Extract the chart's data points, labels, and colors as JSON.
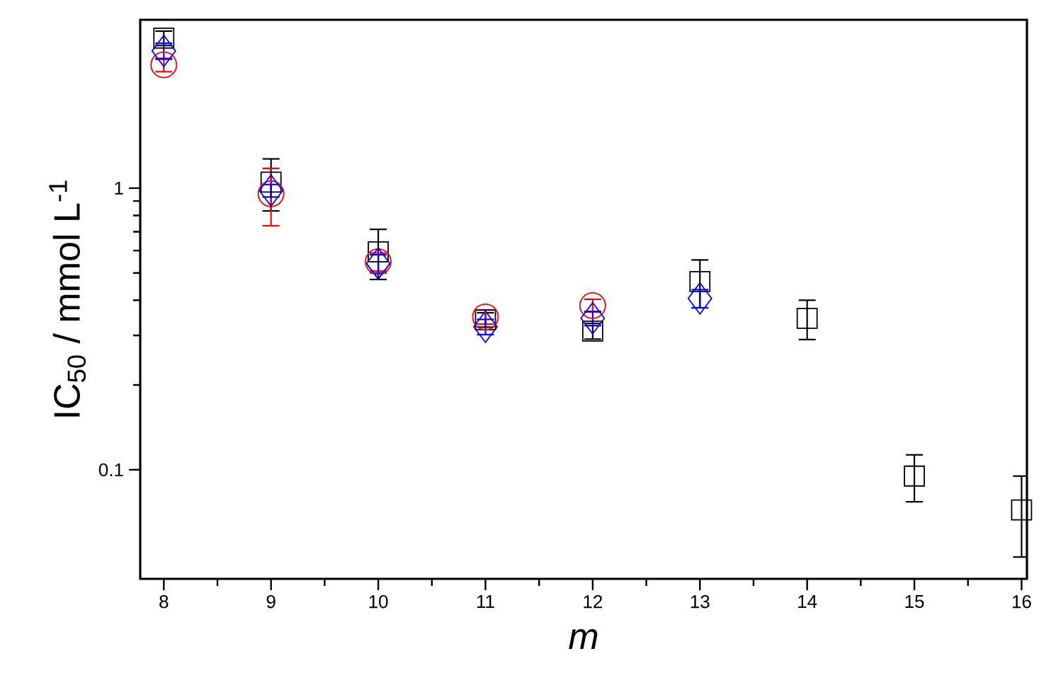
{
  "chart_data": {
    "type": "scatter",
    "xlabel": "m",
    "ylabel": "IC$_{50}$ / mmol L$^{-1}$",
    "log": "y",
    "xlim": [
      7.78,
      16.05
    ],
    "ylim": [
      0.041,
      3.96
    ],
    "xticks": [
      8,
      9,
      10,
      11,
      12,
      13,
      14,
      15,
      16
    ],
    "yticks": [
      0.1,
      1
    ],
    "grid": false,
    "series": [
      {
        "color": "#000000",
        "marker": "square",
        "x": [
          8,
          9,
          10,
          11,
          12,
          13,
          14,
          15,
          16
        ],
        "values": [
          3.41,
          1.05,
          0.594,
          0.341,
          0.311,
          0.466,
          0.345,
          0.095,
          0.072
        ],
        "errors": [
          0.2,
          0.22,
          0.12,
          0.02,
          0.02,
          0.09,
          0.055,
          0.018,
          0.023
        ]
      },
      {
        "color": "#ff0000",
        "marker": "circle",
        "x": [
          8,
          9,
          10,
          11,
          12
        ],
        "values": [
          2.74,
          0.955,
          0.548,
          0.349,
          0.383
        ],
        "errors": [
          0.15,
          0.22,
          0.04,
          0.02,
          0.02
        ]
      },
      {
        "color": "#0000ff",
        "marker": "diamond",
        "x": [
          8,
          9,
          10,
          11,
          12,
          13
        ],
        "values": [
          3.07,
          0.98,
          0.54,
          0.322,
          0.345,
          0.406
        ],
        "errors": [
          0.2,
          0.05,
          0.04,
          0.02,
          0.02,
          0.03
        ]
      }
    ]
  }
}
